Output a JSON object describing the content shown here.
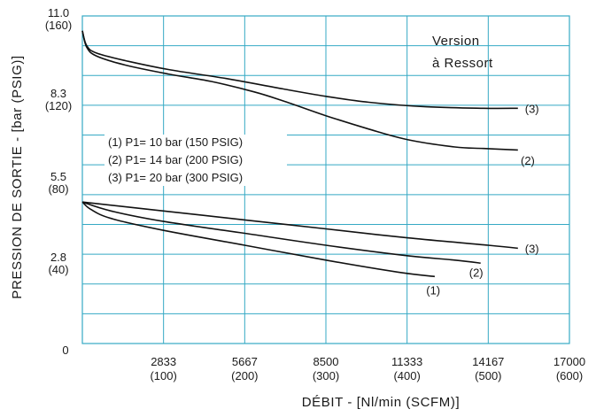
{
  "chart_data": {
    "type": "line",
    "title": "",
    "xlabel": "DÉBIT - [Nl/min (SCFM)]",
    "ylabel": "PRESSION DE SORTIE - [bar (PSIG)]",
    "xlim": [
      0,
      17000
    ],
    "ylim": [
      0,
      11.0
    ],
    "grid": true,
    "x_ticks": [
      {
        "value": 2833,
        "label": "2833",
        "sub": "(100)"
      },
      {
        "value": 5667,
        "label": "5667",
        "sub": "(200)"
      },
      {
        "value": 8500,
        "label": "8500",
        "sub": "(300)"
      },
      {
        "value": 11333,
        "label": "11333",
        "sub": "(400)"
      },
      {
        "value": 14167,
        "label": "14167",
        "sub": "(500)"
      },
      {
        "value": 17000,
        "label": "17000",
        "sub": "(600)"
      }
    ],
    "y_ticks": [
      {
        "value": 0,
        "label": "0",
        "sub": ""
      },
      {
        "value": 2.8,
        "label": "2.8",
        "sub": "(40)"
      },
      {
        "value": 5.5,
        "label": "5.5",
        "sub": "(80)"
      },
      {
        "value": 8.3,
        "label": "8.3",
        "sub": "(120)"
      },
      {
        "value": 11.0,
        "label": "11.0",
        "sub": "(160)"
      }
    ],
    "legend": {
      "placement": "center-left",
      "entries": [
        "(1) P1= 10 bar (150 PSIG)",
        "(2) P1= 14 bar (200 PSIG)",
        "(3) P1= 20 bar (300 PSIG)"
      ]
    },
    "annotation": [
      "Version",
      "à Ressort"
    ],
    "series": [
      {
        "label": "(3)",
        "group": "high",
        "x": [
          0,
          150,
          500,
          1500,
          3000,
          5000,
          7000,
          8500,
          10000,
          12000,
          14000,
          15200
        ],
        "y": [
          10.5,
          10.0,
          9.75,
          9.5,
          9.2,
          8.9,
          8.55,
          8.3,
          8.1,
          7.95,
          7.9,
          7.9
        ]
      },
      {
        "label": "(2)",
        "group": "high",
        "x": [
          0,
          150,
          500,
          1500,
          3000,
          4500,
          6000,
          7000,
          8500,
          10000,
          11333,
          13000,
          14000,
          15200
        ],
        "y": [
          10.5,
          9.95,
          9.65,
          9.35,
          9.05,
          8.8,
          8.45,
          8.15,
          7.65,
          7.2,
          6.85,
          6.6,
          6.55,
          6.5
        ],
        "label_at": [
          15300,
          6.15
        ]
      },
      {
        "label": "(3)",
        "group": "low",
        "x": [
          0,
          2833,
          5667,
          8500,
          11333,
          14167,
          15200
        ],
        "y": [
          4.75,
          4.45,
          4.15,
          3.85,
          3.55,
          3.3,
          3.2
        ]
      },
      {
        "label": "(2)",
        "group": "low",
        "x": [
          0,
          1000,
          2833,
          5667,
          8500,
          11333,
          13000,
          13900
        ],
        "y": [
          4.75,
          4.45,
          4.1,
          3.7,
          3.3,
          2.95,
          2.8,
          2.7
        ],
        "label_at": [
          13500,
          2.4
        ]
      },
      {
        "label": "(1)",
        "group": "low",
        "x": [
          0,
          300,
          1000,
          2833,
          5667,
          8500,
          11000,
          12300
        ],
        "y": [
          4.75,
          4.5,
          4.2,
          3.8,
          3.3,
          2.8,
          2.4,
          2.25
        ],
        "label_at": [
          12000,
          1.8
        ]
      }
    ]
  }
}
